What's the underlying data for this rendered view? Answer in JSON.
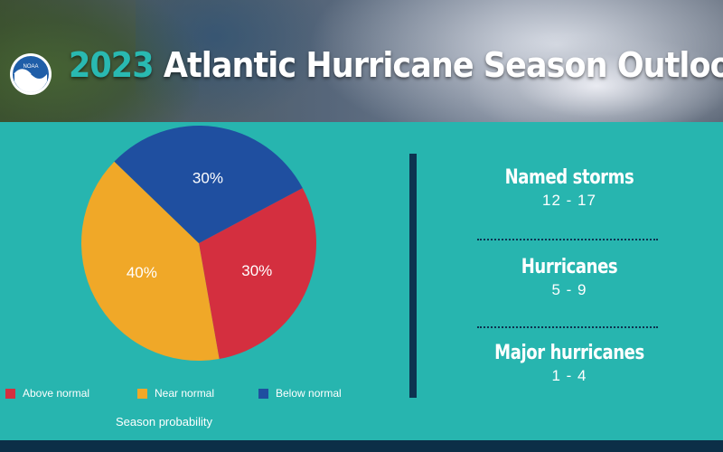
{
  "header": {
    "title_year": "2023",
    "title_rest": "Atlantic Hurricane Season Outlook",
    "logo_icon": "noaa-logo-icon",
    "logo_text": "NOAA"
  },
  "chart_data": {
    "type": "pie",
    "title": "",
    "caption": "Season probability",
    "slices": [
      {
        "label": "Above normal",
        "value": 30,
        "display": "30%",
        "color": "#d42f3f"
      },
      {
        "label": "Near normal",
        "value": 40,
        "display": "40%",
        "color": "#f0a828"
      },
      {
        "label": "Below normal",
        "value": 30,
        "display": "30%",
        "color": "#1f4fa0"
      }
    ],
    "legend_position": "bottom"
  },
  "stats": [
    {
      "name": "Named storms",
      "value": "12 - 17"
    },
    {
      "name": "Hurricanes",
      "value": "5 - 9"
    },
    {
      "name": "Major hurricanes",
      "value": "1 - 4"
    }
  ],
  "colors": {
    "background": "#27b5af",
    "accent_dark": "#0d3350",
    "title_year": "#29b9b1"
  }
}
